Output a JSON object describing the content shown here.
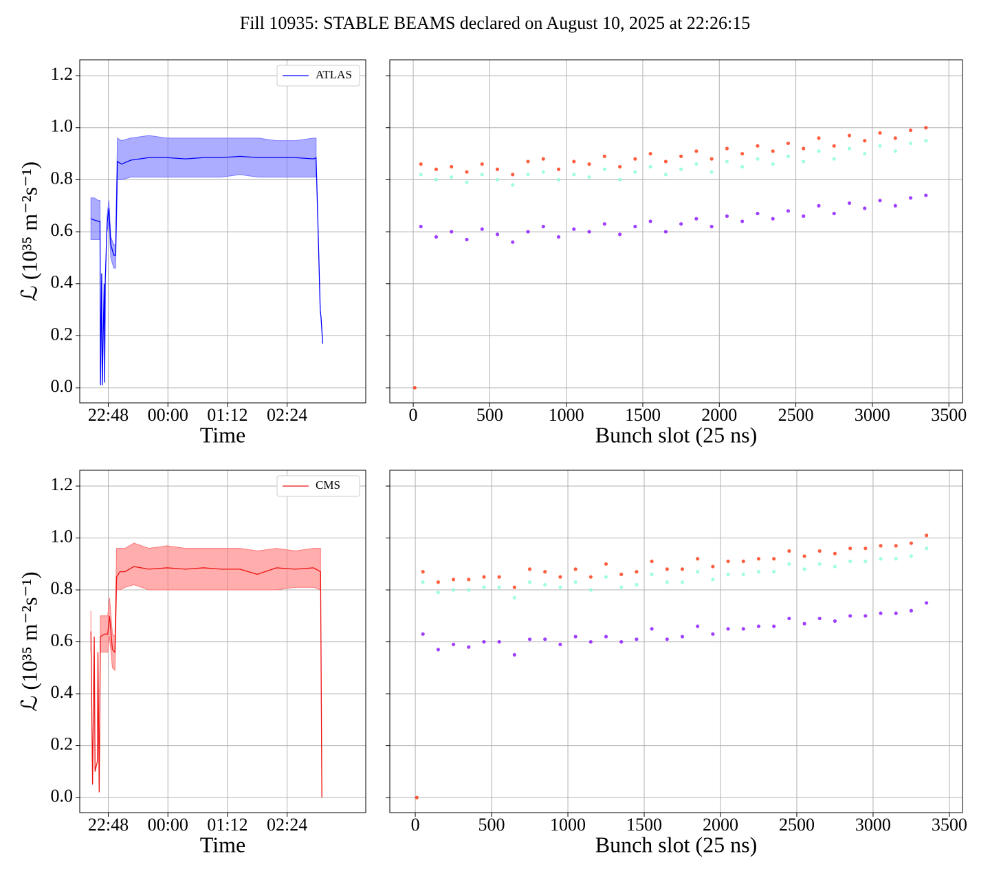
{
  "title": "Fill 10935: STABLE BEAMS declared on August 10, 2025 at 22:26:15",
  "chart_data": [
    {
      "type": "line",
      "xlabel": "Time",
      "ylabel": "ℒ (10³⁵ m⁻²s⁻¹)",
      "grid": true,
      "legend": "upper right",
      "xlim": [
        1333.5,
        1679
      ],
      "xticks": [
        {
          "value": 1368,
          "label": "22:48"
        },
        {
          "value": 1440,
          "label": "00:00"
        },
        {
          "value": 1512,
          "label": "01:12"
        },
        {
          "value": 1584,
          "label": "02:24"
        }
      ],
      "ylim": [
        -0.058,
        1.261
      ],
      "yticks": [
        {
          "value": 0,
          "label": "0.0"
        },
        0.2,
        0.4,
        0.6,
        0.8,
        {
          "value": 1,
          "label": "1.0"
        },
        1.2
      ],
      "x": [
        1347,
        1351,
        1356,
        1358,
        1358.5,
        1360,
        1360.7,
        1363,
        1363.6,
        1364.3,
        1366.5,
        1368.7,
        1371,
        1374.6,
        1376.8,
        1379,
        1384,
        1395,
        1417,
        1439,
        1461,
        1483,
        1505,
        1527,
        1549,
        1571,
        1594,
        1616,
        1619,
        1621.5,
        1624,
        1625,
        1627
      ],
      "series": [
        {
          "name": "ATLAS",
          "color": "#0000ff",
          "band_color": "#7777ff",
          "values": [
            0.65,
            0.645,
            0.64,
            0.64,
            0.01,
            0.44,
            0.01,
            0.4,
            0.02,
            0.41,
            0.63,
            0.69,
            0.55,
            0.51,
            0.51,
            0.87,
            0.86,
            0.875,
            0.885,
            0.885,
            0.88,
            0.885,
            0.885,
            0.89,
            0.885,
            0.885,
            0.885,
            0.88,
            0.885,
            0.6,
            0.3,
            0.27,
            0.17
          ],
          "lower": [
            0.57,
            0.57,
            0.57,
            0.57,
            null,
            null,
            null,
            null,
            null,
            null,
            0.6,
            0.64,
            0.5,
            0.46,
            0.46,
            0.8,
            0.8,
            0.81,
            0.81,
            0.81,
            0.81,
            0.81,
            0.81,
            0.82,
            0.81,
            0.81,
            0.81,
            0.81,
            0.81,
            null,
            null,
            null,
            null
          ],
          "upper": [
            0.73,
            0.73,
            0.72,
            0.72,
            null,
            null,
            null,
            null,
            null,
            null,
            0.66,
            0.72,
            0.58,
            0.55,
            0.55,
            0.96,
            0.95,
            0.96,
            0.97,
            0.96,
            0.96,
            0.96,
            0.96,
            0.96,
            0.96,
            0.95,
            0.95,
            0.96,
            0.96,
            null,
            null,
            null,
            null
          ]
        }
      ]
    },
    {
      "type": "scatter",
      "xlabel": "Bunch slot (25 ns)",
      "grid": true,
      "show_ytick_labels": false,
      "xlim": [
        -153,
        3589
      ],
      "xticks": [
        0,
        500,
        1000,
        1500,
        2000,
        2500,
        3000,
        3500
      ],
      "ylim": [
        -0.058,
        1.261
      ],
      "yticks": [
        {
          "value": 0,
          "label": "0.0"
        },
        0.2,
        0.4,
        0.6,
        0.8,
        {
          "value": 1,
          "label": "1.0"
        },
        1.2
      ],
      "series": [
        {
          "color": "#8000ff",
          "x": [
            50,
            150,
            250,
            350,
            450,
            550,
            650,
            750,
            850,
            950,
            1050,
            1150,
            1250,
            1350,
            1450,
            1550,
            1650,
            1750,
            1850,
            1950,
            2050,
            2150,
            2250,
            2350,
            2450,
            2550,
            2650,
            2750,
            2850,
            2950,
            3050,
            3150,
            3250,
            3350
          ],
          "values": [
            0.62,
            0.58,
            0.6,
            0.57,
            0.61,
            0.59,
            0.56,
            0.6,
            0.62,
            0.58,
            0.61,
            0.6,
            0.63,
            0.59,
            0.62,
            0.64,
            0.6,
            0.63,
            0.65,
            0.62,
            0.66,
            0.64,
            0.67,
            0.65,
            0.68,
            0.66,
            0.7,
            0.67,
            0.71,
            0.69,
            0.72,
            0.7,
            0.73,
            0.74
          ]
        },
        {
          "color": "#80ffd4",
          "x": [
            50,
            150,
            250,
            350,
            450,
            550,
            650,
            750,
            850,
            950,
            1050,
            1150,
            1250,
            1350,
            1450,
            1550,
            1650,
            1750,
            1850,
            1950,
            2050,
            2150,
            2250,
            2350,
            2450,
            2550,
            2650,
            2750,
            2850,
            2950,
            3050,
            3150,
            3250,
            3350
          ],
          "values": [
            0.82,
            0.8,
            0.81,
            0.79,
            0.82,
            0.8,
            0.78,
            0.82,
            0.83,
            0.8,
            0.82,
            0.81,
            0.84,
            0.8,
            0.83,
            0.85,
            0.82,
            0.84,
            0.86,
            0.83,
            0.87,
            0.85,
            0.88,
            0.86,
            0.89,
            0.87,
            0.91,
            0.88,
            0.92,
            0.9,
            0.93,
            0.91,
            0.94,
            0.95
          ]
        },
        {
          "color": "#ff2a00",
          "x": [
            50,
            150,
            250,
            350,
            450,
            550,
            650,
            750,
            850,
            950,
            1050,
            1150,
            1250,
            1350,
            1450,
            1550,
            1650,
            1750,
            1850,
            1950,
            2050,
            2150,
            2250,
            2350,
            2450,
            2550,
            2650,
            2750,
            2850,
            2950,
            3050,
            3150,
            3250,
            3350,
            10
          ],
          "values": [
            0.86,
            0.84,
            0.85,
            0.83,
            0.86,
            0.84,
            0.82,
            0.87,
            0.88,
            0.84,
            0.87,
            0.86,
            0.89,
            0.85,
            0.88,
            0.9,
            0.87,
            0.89,
            0.91,
            0.88,
            0.92,
            0.9,
            0.93,
            0.91,
            0.94,
            0.92,
            0.96,
            0.93,
            0.97,
            0.95,
            0.98,
            0.96,
            0.99,
            1.0,
            0
          ]
        }
      ]
    },
    {
      "type": "line",
      "xlabel": "Time",
      "ylabel": "ℒ (10³⁵ m⁻²s⁻¹)",
      "grid": true,
      "legend": "upper right",
      "xlim": [
        1333.5,
        1679
      ],
      "xticks": [
        {
          "value": 1368,
          "label": "22:48"
        },
        {
          "value": 1440,
          "label": "00:00"
        },
        {
          "value": 1512,
          "label": "01:12"
        },
        {
          "value": 1584,
          "label": "02:24"
        }
      ],
      "ylim": [
        -0.058,
        1.261
      ],
      "yticks": [
        {
          "value": 0,
          "label": "0.0"
        },
        0.2,
        0.4,
        0.6,
        0.8,
        {
          "value": 1,
          "label": "1.0"
        },
        1.2
      ],
      "x": [
        1347,
        1349,
        1351,
        1352,
        1354.8,
        1355.5,
        1357,
        1358.4,
        1363.6,
        1367.3,
        1369.5,
        1373,
        1376,
        1378,
        1382,
        1388,
        1399,
        1417,
        1439,
        1461,
        1483,
        1505,
        1527,
        1548,
        1571,
        1594,
        1616,
        1624.4,
        1626
      ],
      "series": [
        {
          "name": "CMS",
          "color": "#ee1111",
          "band_color": "#ff7777",
          "values": [
            0.64,
            0.05,
            0.62,
            0.1,
            0.14,
            0.56,
            0.02,
            0.62,
            0.63,
            0.63,
            0.7,
            0.57,
            0.56,
            0.85,
            0.87,
            0.87,
            0.89,
            0.88,
            0.885,
            0.88,
            0.885,
            0.88,
            0.88,
            0.86,
            0.885,
            0.88,
            0.885,
            0.87,
            0.0
          ],
          "lower": [
            0.56,
            null,
            null,
            null,
            null,
            null,
            null,
            0.56,
            0.56,
            0.56,
            0.62,
            0.5,
            0.49,
            0.8,
            0.8,
            0.81,
            0.82,
            0.8,
            0.8,
            0.8,
            0.8,
            0.8,
            0.8,
            0.8,
            0.8,
            0.81,
            0.81,
            0.8,
            null
          ],
          "upper": [
            0.72,
            null,
            null,
            null,
            null,
            null,
            null,
            0.7,
            0.7,
            0.7,
            0.77,
            0.63,
            0.62,
            0.96,
            0.96,
            0.96,
            0.98,
            0.96,
            0.97,
            0.96,
            0.96,
            0.96,
            0.96,
            0.95,
            0.96,
            0.95,
            0.96,
            0.96,
            null
          ]
        }
      ]
    },
    {
      "type": "scatter",
      "xlabel": "Bunch slot (25 ns)",
      "grid": true,
      "show_ytick_labels": false,
      "xlim": [
        -167,
        3586
      ],
      "xticks": [
        0,
        500,
        1000,
        1500,
        2000,
        2500,
        3000,
        3500
      ],
      "ylim": [
        -0.058,
        1.261
      ],
      "yticks": [
        {
          "value": 0,
          "label": "0.0"
        },
        0.2,
        0.4,
        0.6,
        0.8,
        {
          "value": 1,
          "label": "1.0"
        },
        1.2
      ],
      "series": [
        {
          "color": "#8000ff",
          "x": [
            50,
            150,
            250,
            350,
            450,
            550,
            650,
            750,
            850,
            950,
            1050,
            1150,
            1250,
            1350,
            1450,
            1550,
            1650,
            1750,
            1850,
            1950,
            2050,
            2150,
            2250,
            2350,
            2450,
            2550,
            2650,
            2750,
            2850,
            2950,
            3050,
            3150,
            3250,
            3350
          ],
          "values": [
            0.63,
            0.57,
            0.59,
            0.58,
            0.6,
            0.6,
            0.55,
            0.61,
            0.61,
            0.59,
            0.62,
            0.6,
            0.62,
            0.6,
            0.61,
            0.65,
            0.61,
            0.62,
            0.66,
            0.63,
            0.65,
            0.65,
            0.66,
            0.66,
            0.69,
            0.67,
            0.69,
            0.68,
            0.7,
            0.7,
            0.71,
            0.71,
            0.72,
            0.75
          ]
        },
        {
          "color": "#80ffd4",
          "x": [
            50,
            150,
            250,
            350,
            450,
            550,
            650,
            750,
            850,
            950,
            1050,
            1150,
            1250,
            1350,
            1450,
            1550,
            1650,
            1750,
            1850,
            1950,
            2050,
            2150,
            2250,
            2350,
            2450,
            2550,
            2650,
            2750,
            2850,
            2950,
            3050,
            3150,
            3250,
            3350
          ],
          "values": [
            0.83,
            0.79,
            0.8,
            0.8,
            0.81,
            0.81,
            0.77,
            0.83,
            0.82,
            0.81,
            0.83,
            0.8,
            0.85,
            0.81,
            0.82,
            0.86,
            0.83,
            0.83,
            0.87,
            0.84,
            0.86,
            0.86,
            0.87,
            0.87,
            0.9,
            0.88,
            0.9,
            0.89,
            0.91,
            0.91,
            0.92,
            0.92,
            0.93,
            0.96
          ]
        },
        {
          "color": "#ff2a00",
          "x": [
            50,
            150,
            250,
            350,
            450,
            550,
            650,
            750,
            850,
            950,
            1050,
            1150,
            1250,
            1350,
            1450,
            1550,
            1650,
            1750,
            1850,
            1950,
            2050,
            2150,
            2250,
            2350,
            2450,
            2550,
            2650,
            2750,
            2850,
            2950,
            3050,
            3150,
            3250,
            3350,
            10
          ],
          "values": [
            0.87,
            0.83,
            0.84,
            0.84,
            0.85,
            0.85,
            0.81,
            0.88,
            0.87,
            0.85,
            0.88,
            0.85,
            0.9,
            0.86,
            0.87,
            0.91,
            0.88,
            0.88,
            0.92,
            0.89,
            0.91,
            0.91,
            0.92,
            0.92,
            0.95,
            0.93,
            0.95,
            0.94,
            0.96,
            0.96,
            0.97,
            0.97,
            0.98,
            1.01,
            0
          ]
        }
      ]
    }
  ]
}
